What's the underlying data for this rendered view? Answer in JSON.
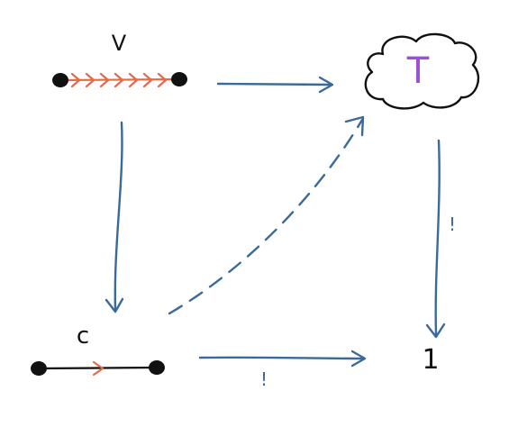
{
  "diagram": {
    "nodes": {
      "v": {
        "label": "V"
      },
      "t": {
        "label": "T"
      },
      "c": {
        "label": "c"
      },
      "one": {
        "label": "1"
      }
    },
    "edges": {
      "bottom": {
        "label": "!"
      },
      "right": {
        "label": "!"
      }
    }
  },
  "colors": {
    "arrow": "#3a6a9a",
    "accent_arrow": "#e8684a",
    "t_label": "#a04fd0",
    "ink": "#111111"
  }
}
